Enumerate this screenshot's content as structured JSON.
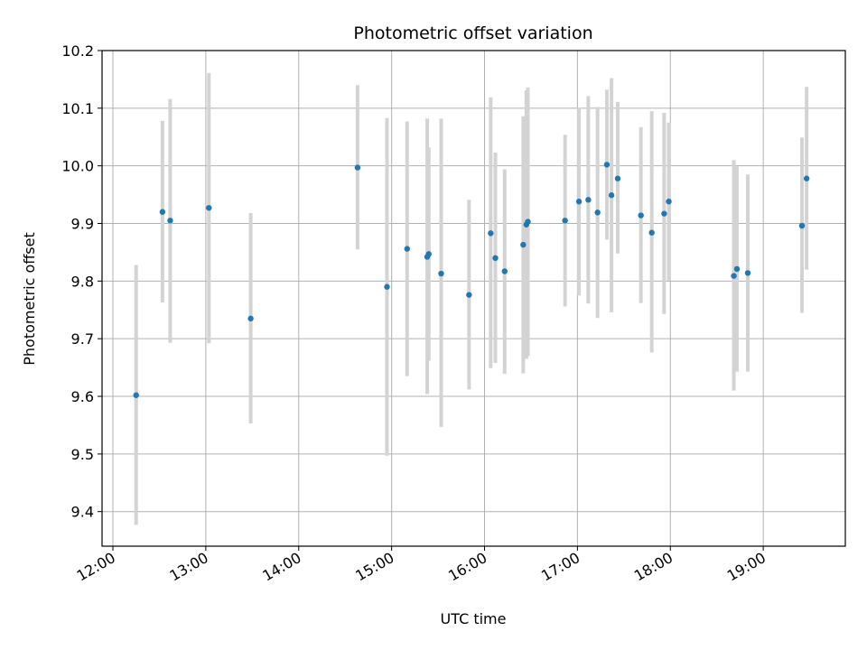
{
  "chart_data": {
    "type": "scatter",
    "title": "Photometric offset variation",
    "xlabel": "UTC time",
    "ylabel": "Photometric offset",
    "xlim": [
      "11:53",
      "19:53"
    ],
    "ylim": [
      9.34,
      10.2
    ],
    "xticks": [
      "12:00",
      "13:00",
      "14:00",
      "15:00",
      "16:00",
      "17:00",
      "18:00",
      "19:00"
    ],
    "yticks": [
      "9.4",
      "9.5",
      "9.6",
      "9.7",
      "9.8",
      "9.9",
      "10.0",
      "10.1",
      "10.2"
    ],
    "grid": true,
    "errorbar_color": "#d3d3d3",
    "marker_color": "#1f77b4",
    "points": [
      {
        "time": "12:15",
        "y": 9.602,
        "ylow": 9.377,
        "yhigh": 9.828
      },
      {
        "time": "12:32",
        "y": 9.92,
        "ylow": 9.763,
        "yhigh": 10.078
      },
      {
        "time": "12:37",
        "y": 9.905,
        "ylow": 9.693,
        "yhigh": 10.116
      },
      {
        "time": "13:02",
        "y": 9.927,
        "ylow": 9.692,
        "yhigh": 10.161
      },
      {
        "time": "13:29",
        "y": 9.735,
        "ylow": 9.553,
        "yhigh": 9.918
      },
      {
        "time": "14:38",
        "y": 9.997,
        "ylow": 9.855,
        "yhigh": 10.14
      },
      {
        "time": "14:57",
        "y": 9.79,
        "ylow": 9.497,
        "yhigh": 10.083
      },
      {
        "time": "15:10",
        "y": 9.856,
        "ylow": 9.635,
        "yhigh": 10.077
      },
      {
        "time": "15:23",
        "y": 9.842,
        "ylow": 9.604,
        "yhigh": 10.082
      },
      {
        "time": "15:24",
        "y": 9.847,
        "ylow": 9.662,
        "yhigh": 10.032
      },
      {
        "time": "15:32",
        "y": 9.813,
        "ylow": 9.547,
        "yhigh": 10.082
      },
      {
        "time": "15:50",
        "y": 9.776,
        "ylow": 9.612,
        "yhigh": 9.941
      },
      {
        "time": "16:04",
        "y": 9.883,
        "ylow": 9.649,
        "yhigh": 10.119
      },
      {
        "time": "16:07",
        "y": 9.84,
        "ylow": 9.658,
        "yhigh": 10.023
      },
      {
        "time": "16:13",
        "y": 9.817,
        "ylow": 9.639,
        "yhigh": 9.994
      },
      {
        "time": "16:25",
        "y": 9.863,
        "ylow": 9.64,
        "yhigh": 10.086
      },
      {
        "time": "16:27",
        "y": 9.898,
        "ylow": 9.665,
        "yhigh": 10.131
      },
      {
        "time": "16:28",
        "y": 9.903,
        "ylow": 9.67,
        "yhigh": 10.136
      },
      {
        "time": "16:52",
        "y": 9.905,
        "ylow": 9.756,
        "yhigh": 10.054
      },
      {
        "time": "17:01",
        "y": 9.938,
        "ylow": 9.775,
        "yhigh": 10.101
      },
      {
        "time": "17:07",
        "y": 9.941,
        "ylow": 9.761,
        "yhigh": 10.121
      },
      {
        "time": "17:13",
        "y": 9.919,
        "ylow": 9.736,
        "yhigh": 10.102
      },
      {
        "time": "17:19",
        "y": 10.002,
        "ylow": 9.872,
        "yhigh": 10.132
      },
      {
        "time": "17:22",
        "y": 9.949,
        "ylow": 9.746,
        "yhigh": 10.152
      },
      {
        "time": "17:26",
        "y": 9.978,
        "ylow": 9.848,
        "yhigh": 10.111
      },
      {
        "time": "17:41",
        "y": 9.914,
        "ylow": 9.762,
        "yhigh": 10.067
      },
      {
        "time": "17:48",
        "y": 9.884,
        "ylow": 9.676,
        "yhigh": 10.095
      },
      {
        "time": "17:56",
        "y": 9.917,
        "ylow": 9.743,
        "yhigh": 10.092
      },
      {
        "time": "17:59",
        "y": 9.938,
        "ylow": 9.801,
        "yhigh": 10.075
      },
      {
        "time": "18:41",
        "y": 9.809,
        "ylow": 9.61,
        "yhigh": 10.01
      },
      {
        "time": "18:43",
        "y": 9.821,
        "ylow": 9.643,
        "yhigh": 9.999
      },
      {
        "time": "18:50",
        "y": 9.814,
        "ylow": 9.643,
        "yhigh": 9.985
      },
      {
        "time": "19:25",
        "y": 9.896,
        "ylow": 9.745,
        "yhigh": 10.049
      },
      {
        "time": "19:28",
        "y": 9.978,
        "ylow": 9.82,
        "yhigh": 10.137
      }
    ]
  }
}
